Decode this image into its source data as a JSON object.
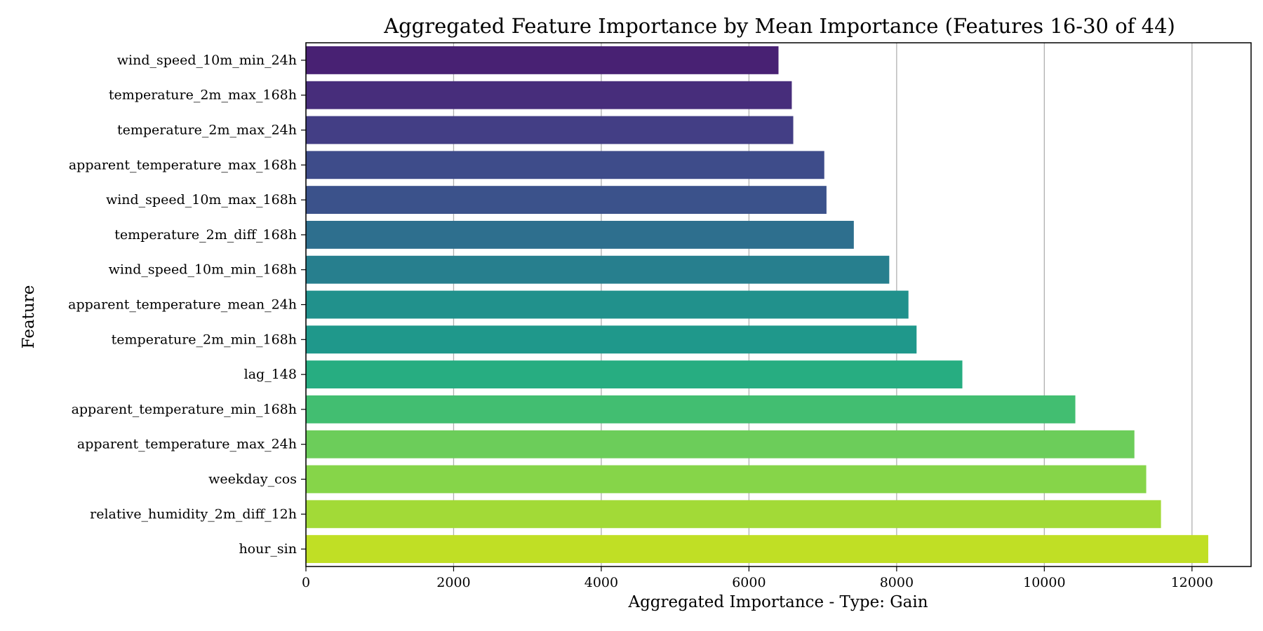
{
  "chart_data": {
    "type": "bar",
    "orientation": "horizontal",
    "title": "Aggregated Feature Importance by Mean Importance (Features 16-30 of 44)",
    "xlabel": "Aggregated Importance - Type: Gain",
    "ylabel": "Feature",
    "xlim": [
      0,
      12800
    ],
    "xticks": [
      0,
      2000,
      4000,
      6000,
      8000,
      10000,
      12000
    ],
    "grid": "vertical",
    "colormap": "viridis",
    "categories": [
      "wind_speed_10m_min_24h",
      "temperature_2m_max_168h",
      "temperature_2m_max_24h",
      "apparent_temperature_max_168h",
      "wind_speed_10m_max_168h",
      "temperature_2m_diff_168h",
      "wind_speed_10m_min_168h",
      "apparent_temperature_mean_24h",
      "temperature_2m_min_168h",
      "lag_148",
      "apparent_temperature_min_168h",
      "apparent_temperature_max_24h",
      "weekday_cos",
      "relative_humidity_2m_diff_12h",
      "hour_sin"
    ],
    "values": [
      6400,
      6580,
      6600,
      7020,
      7050,
      7420,
      7900,
      8160,
      8270,
      8890,
      10420,
      11220,
      11380,
      11580,
      12220
    ],
    "colors": [
      "#482173",
      "#472d7b",
      "#433e85",
      "#3e4c8a",
      "#3b528b",
      "#2e6f8e",
      "#277f8e",
      "#21918c",
      "#1f988b",
      "#27ad81",
      "#42be71",
      "#6ccd5a",
      "#86d549",
      "#a2da37",
      "#c0df25"
    ]
  }
}
